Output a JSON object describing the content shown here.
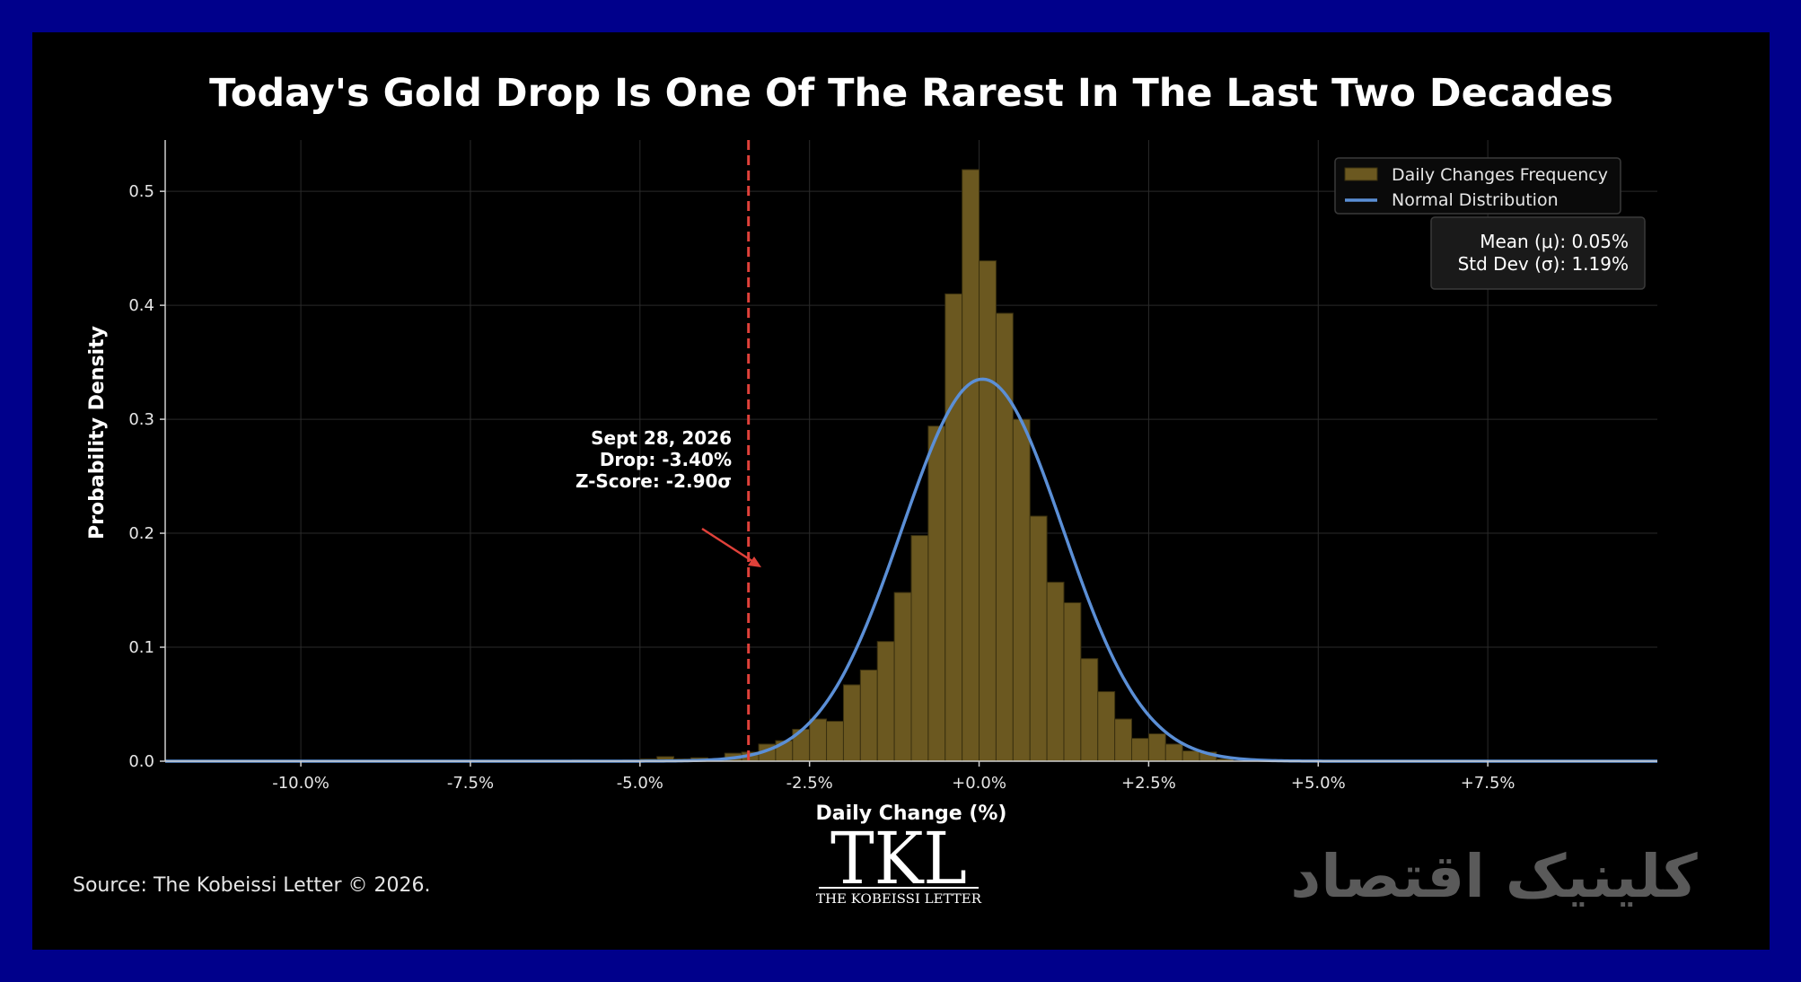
{
  "colors": {
    "frame": "#00008b",
    "background": "#000000",
    "bars": "#6b5820",
    "bar_edge": "#3a300f",
    "normal_curve": "#5b8fd6",
    "drop_line": "#e0413a",
    "grid": "#2a2a2a"
  },
  "chart_data": {
    "type": "bar",
    "title": "Today's Gold Drop Is One Of The Rarest In The Last Two Decades",
    "xlabel": "Daily Change (%)",
    "ylabel": "Probability Density",
    "xlim": [
      -12.0,
      10.0
    ],
    "ylim": [
      0,
      0.545
    ],
    "x_ticks": [
      -10,
      -7.5,
      -5,
      -2.5,
      0,
      2.5,
      5,
      7.5
    ],
    "x_tick_labels": [
      "-10.0%",
      "-7.5%",
      "-5.0%",
      "-2.5%",
      "+0.0%",
      "+2.5%",
      "+5.0%",
      "+7.5%"
    ],
    "y_ticks": [
      0,
      0.1,
      0.2,
      0.3,
      0.4,
      0.5
    ],
    "y_tick_labels": [
      "0.0",
      "0.1",
      "0.2",
      "0.3",
      "0.4",
      "0.5"
    ],
    "grid": true,
    "legend_position": "top-right",
    "histogram": {
      "name": "Daily Changes Frequency",
      "bin_width": 0.25,
      "bin_starts": [
        -6.0,
        -5.75,
        -5.5,
        -5.25,
        -5.0,
        -4.75,
        -4.5,
        -4.25,
        -4.0,
        -3.75,
        -3.5,
        -3.25,
        -3.0,
        -2.75,
        -2.5,
        -2.25,
        -2.0,
        -1.75,
        -1.5,
        -1.25,
        -1.0,
        -0.75,
        -0.5,
        -0.25,
        0.0,
        0.25,
        0.5,
        0.75,
        1.0,
        1.25,
        1.5,
        1.75,
        2.0,
        2.25,
        2.5,
        2.75,
        3.0,
        3.25,
        3.5
      ],
      "densities": [
        0.001,
        0.0,
        0.0,
        0.001,
        0.002,
        0.004,
        0.002,
        0.003,
        0.002,
        0.007,
        0.008,
        0.015,
        0.018,
        0.028,
        0.037,
        0.035,
        0.067,
        0.08,
        0.105,
        0.148,
        0.198,
        0.294,
        0.41,
        0.519,
        0.439,
        0.393,
        0.3,
        0.215,
        0.157,
        0.139,
        0.09,
        0.061,
        0.037,
        0.02,
        0.024,
        0.015,
        0.009,
        0.008,
        0.002
      ]
    },
    "normal_fit": {
      "name": "Normal Distribution",
      "mean": 0.05,
      "std": 1.19
    },
    "stats_box": {
      "mean_label": "Mean (μ): 0.05%",
      "std_label": "Std Dev (σ): 1.19%"
    },
    "annotation": {
      "x": -3.4,
      "line1": "Sept 28, 2026",
      "line2": "Drop: -3.40%",
      "line3": "Z-Score: -2.90σ"
    }
  },
  "source": "Source: The Kobeissi Letter © 2026.",
  "logo": {
    "mark": "TKL",
    "subtitle": "THE KOBEISSI LETTER"
  },
  "watermark": "کلینیک اقتصاد"
}
